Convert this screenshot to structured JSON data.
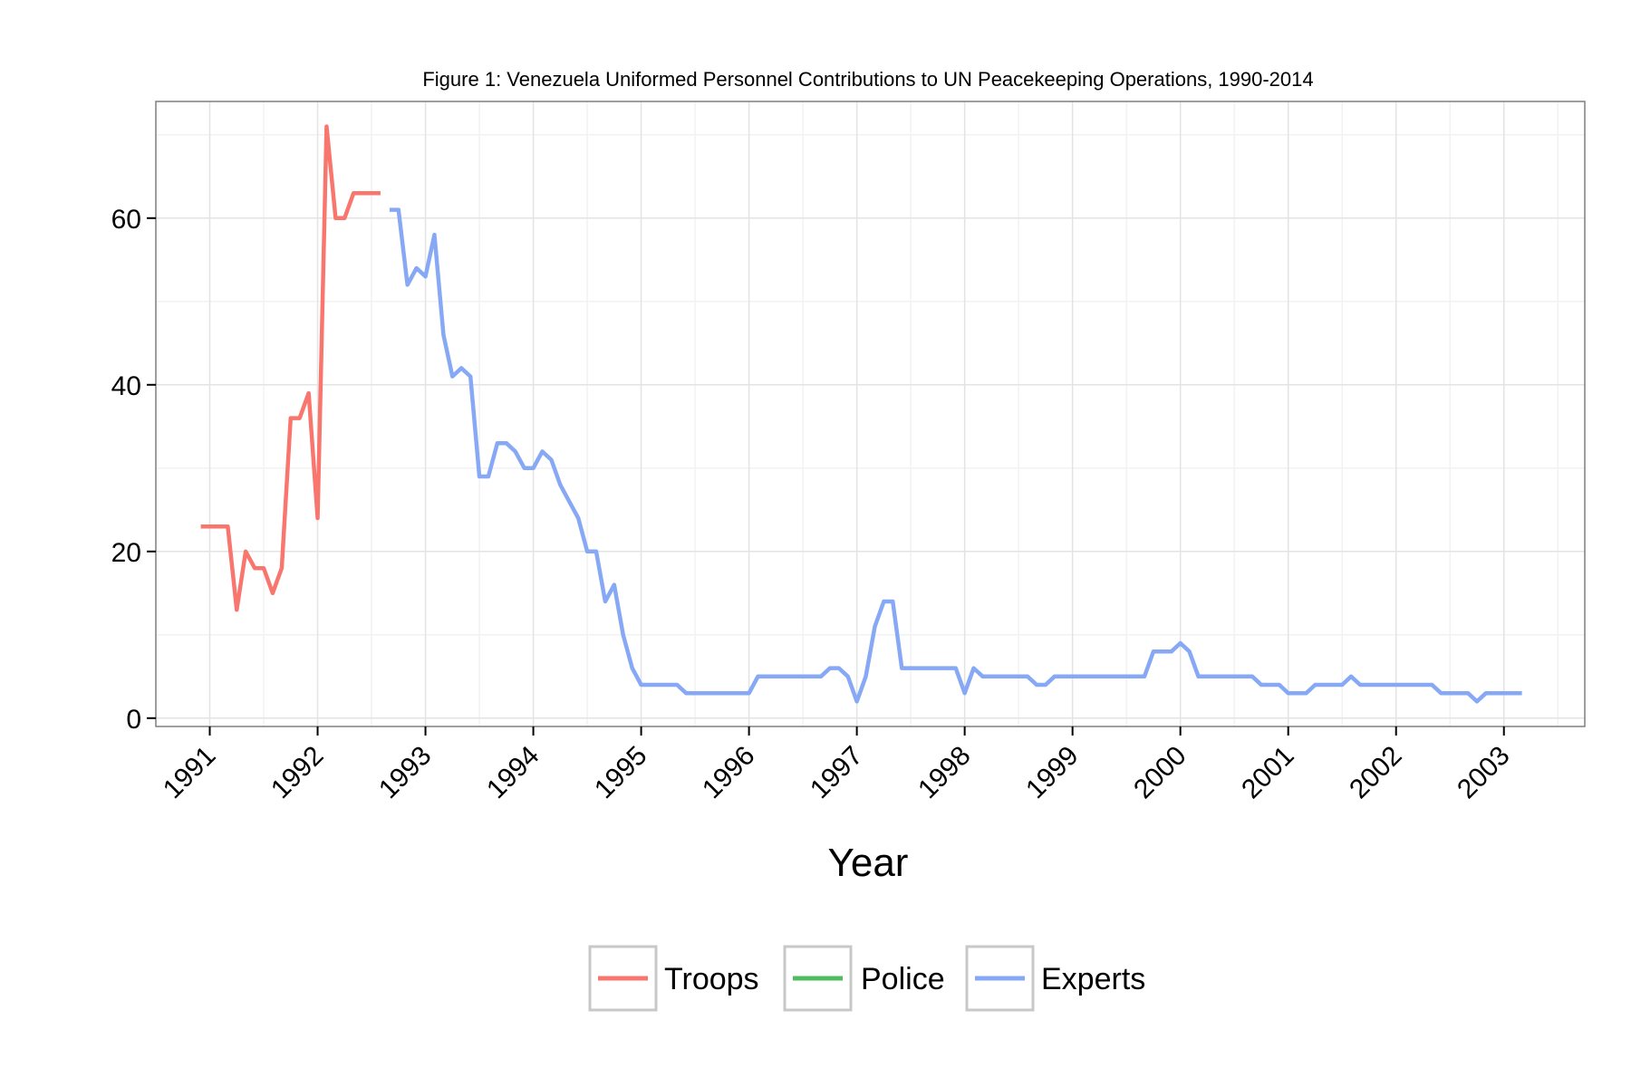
{
  "chart_data": {
    "type": "line",
    "title": "Figure 1: Venezuela Uniformed Personnel Contributions to UN Peacekeeping Operations, 1990-2014",
    "xlabel": "Year",
    "ylabel": "",
    "xlim": [
      1990.5,
      2003.75
    ],
    "ylim": [
      -1,
      74
    ],
    "x_ticks": [
      1991,
      1992,
      1993,
      1994,
      1995,
      1996,
      1997,
      1998,
      1999,
      2000,
      2001,
      2002,
      2003
    ],
    "y_ticks": [
      0,
      20,
      40,
      60
    ],
    "grid": true,
    "legend_position": "bottom",
    "series": [
      {
        "name": "Troops",
        "color": "#F8766D",
        "points": [
          [
            1990.917,
            23
          ],
          [
            1991.0,
            23
          ],
          [
            1991.083,
            23
          ],
          [
            1991.167,
            23
          ],
          [
            1991.25,
            13
          ],
          [
            1991.333,
            20
          ],
          [
            1991.417,
            18
          ],
          [
            1991.5,
            18
          ],
          [
            1991.583,
            15
          ],
          [
            1991.667,
            18
          ],
          [
            1991.75,
            36
          ],
          [
            1991.833,
            36
          ],
          [
            1991.917,
            39
          ],
          [
            1992.0,
            24
          ],
          [
            1992.083,
            71
          ],
          [
            1992.167,
            60
          ],
          [
            1992.25,
            60
          ],
          [
            1992.333,
            63
          ],
          [
            1992.417,
            63
          ],
          [
            1992.5,
            63
          ],
          [
            1992.583,
            63
          ]
        ]
      },
      {
        "name": "Police",
        "color": "#4DBD5F",
        "points": []
      },
      {
        "name": "Experts",
        "color": "#86A8F5",
        "points": [
          [
            1992.667,
            61
          ],
          [
            1992.75,
            61
          ],
          [
            1992.833,
            52
          ],
          [
            1992.917,
            54
          ],
          [
            1993.0,
            53
          ],
          [
            1993.083,
            58
          ],
          [
            1993.167,
            46
          ],
          [
            1993.25,
            41
          ],
          [
            1993.333,
            42
          ],
          [
            1993.417,
            41
          ],
          [
            1993.5,
            29
          ],
          [
            1993.583,
            29
          ],
          [
            1993.667,
            33
          ],
          [
            1993.75,
            33
          ],
          [
            1993.833,
            32
          ],
          [
            1993.917,
            30
          ],
          [
            1994.0,
            30
          ],
          [
            1994.083,
            32
          ],
          [
            1994.167,
            31
          ],
          [
            1994.25,
            28
          ],
          [
            1994.333,
            26
          ],
          [
            1994.417,
            24
          ],
          [
            1994.5,
            20
          ],
          [
            1994.583,
            20
          ],
          [
            1994.667,
            14
          ],
          [
            1994.75,
            16
          ],
          [
            1994.833,
            10
          ],
          [
            1994.917,
            6
          ],
          [
            1995.0,
            4
          ],
          [
            1995.083,
            4
          ],
          [
            1995.167,
            4
          ],
          [
            1995.25,
            4
          ],
          [
            1995.333,
            4
          ],
          [
            1995.417,
            3
          ],
          [
            1995.5,
            3
          ],
          [
            1995.583,
            3
          ],
          [
            1995.667,
            3
          ],
          [
            1995.75,
            3
          ],
          [
            1995.833,
            3
          ],
          [
            1995.917,
            3
          ],
          [
            1996.0,
            3
          ],
          [
            1996.083,
            5
          ],
          [
            1996.167,
            5
          ],
          [
            1996.25,
            5
          ],
          [
            1996.333,
            5
          ],
          [
            1996.417,
            5
          ],
          [
            1996.5,
            5
          ],
          [
            1996.583,
            5
          ],
          [
            1996.667,
            5
          ],
          [
            1996.75,
            6
          ],
          [
            1996.833,
            6
          ],
          [
            1996.917,
            5
          ],
          [
            1997.0,
            2
          ],
          [
            1997.083,
            5
          ],
          [
            1997.167,
            11
          ],
          [
            1997.25,
            14
          ],
          [
            1997.333,
            14
          ],
          [
            1997.417,
            6
          ],
          [
            1997.5,
            6
          ],
          [
            1997.583,
            6
          ],
          [
            1997.667,
            6
          ],
          [
            1997.75,
            6
          ],
          [
            1997.833,
            6
          ],
          [
            1997.917,
            6
          ],
          [
            1998.0,
            3
          ],
          [
            1998.083,
            6
          ],
          [
            1998.167,
            5
          ],
          [
            1998.25,
            5
          ],
          [
            1998.333,
            5
          ],
          [
            1998.417,
            5
          ],
          [
            1998.5,
            5
          ],
          [
            1998.583,
            5
          ],
          [
            1998.667,
            4
          ],
          [
            1998.75,
            4
          ],
          [
            1998.833,
            5
          ],
          [
            1998.917,
            5
          ],
          [
            1999.0,
            5
          ],
          [
            1999.083,
            5
          ],
          [
            1999.167,
            5
          ],
          [
            1999.25,
            5
          ],
          [
            1999.333,
            5
          ],
          [
            1999.417,
            5
          ],
          [
            1999.5,
            5
          ],
          [
            1999.583,
            5
          ],
          [
            1999.667,
            5
          ],
          [
            1999.75,
            8
          ],
          [
            1999.833,
            8
          ],
          [
            1999.917,
            8
          ],
          [
            2000.0,
            9
          ],
          [
            2000.083,
            8
          ],
          [
            2000.167,
            5
          ],
          [
            2000.25,
            5
          ],
          [
            2000.333,
            5
          ],
          [
            2000.417,
            5
          ],
          [
            2000.5,
            5
          ],
          [
            2000.583,
            5
          ],
          [
            2000.667,
            5
          ],
          [
            2000.75,
            4
          ],
          [
            2000.833,
            4
          ],
          [
            2000.917,
            4
          ],
          [
            2001.0,
            3
          ],
          [
            2001.083,
            3
          ],
          [
            2001.167,
            3
          ],
          [
            2001.25,
            4
          ],
          [
            2001.333,
            4
          ],
          [
            2001.417,
            4
          ],
          [
            2001.5,
            4
          ],
          [
            2001.583,
            5
          ],
          [
            2001.667,
            4
          ],
          [
            2001.75,
            4
          ],
          [
            2001.833,
            4
          ],
          [
            2001.917,
            4
          ],
          [
            2002.0,
            4
          ],
          [
            2002.083,
            4
          ],
          [
            2002.167,
            4
          ],
          [
            2002.25,
            4
          ],
          [
            2002.333,
            4
          ],
          [
            2002.417,
            3
          ],
          [
            2002.5,
            3
          ],
          [
            2002.583,
            3
          ],
          [
            2002.667,
            3
          ],
          [
            2002.75,
            2
          ],
          [
            2002.833,
            3
          ],
          [
            2002.917,
            3
          ],
          [
            2003.0,
            3
          ],
          [
            2003.083,
            3
          ],
          [
            2003.167,
            3
          ]
        ]
      }
    ]
  }
}
